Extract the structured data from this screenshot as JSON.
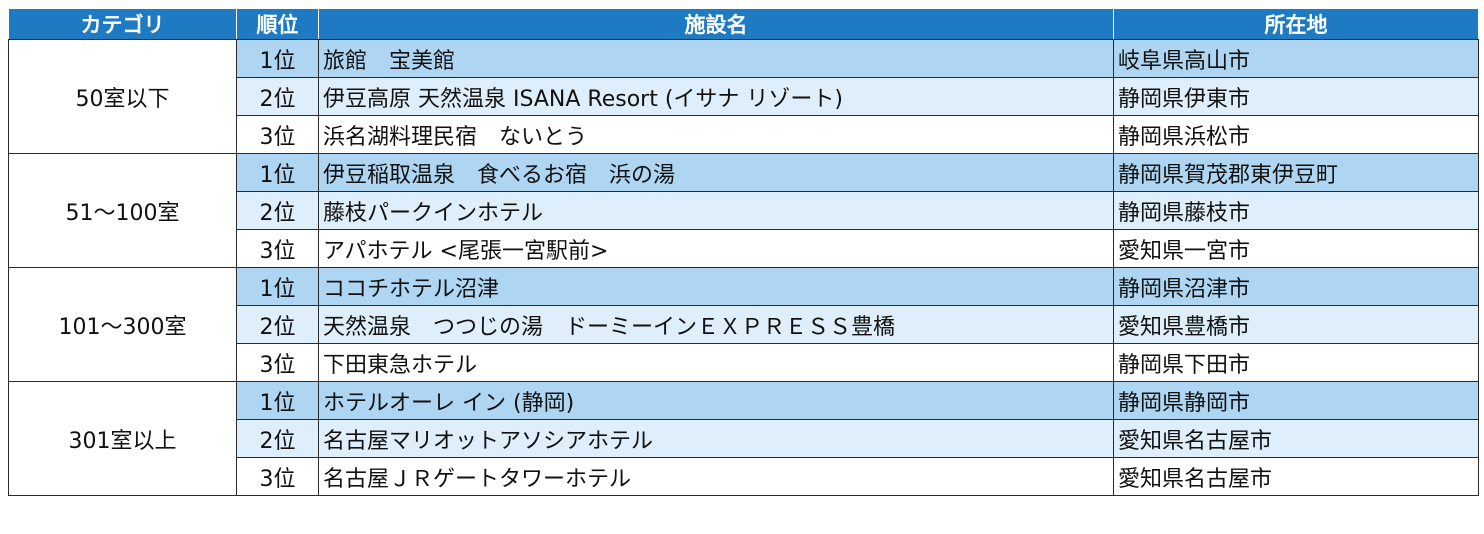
{
  "table": {
    "headers": {
      "category": "カテゴリ",
      "rank": "順位",
      "facility": "施設名",
      "location": "所在地"
    },
    "groups": [
      {
        "category": "50室以下",
        "rows": [
          {
            "rank": "1位",
            "facility": "旅館　宝美館",
            "location": "岐阜県高山市"
          },
          {
            "rank": "2位",
            "facility": "伊豆高原 天然温泉 ISANA Resort (イサナ リゾート)",
            "location": "静岡県伊東市"
          },
          {
            "rank": "3位",
            "facility": "浜名湖料理民宿　ないとう",
            "location": "静岡県浜松市"
          }
        ]
      },
      {
        "category": "51～100室",
        "rows": [
          {
            "rank": "1位",
            "facility": "伊豆稲取温泉　食べるお宿　浜の湯",
            "location": "静岡県賀茂郡東伊豆町"
          },
          {
            "rank": "2位",
            "facility": "藤枝パークインホテル",
            "location": "静岡県藤枝市"
          },
          {
            "rank": "3位",
            "facility": "アパホテル <尾張一宮駅前>",
            "location": "愛知県一宮市"
          }
        ]
      },
      {
        "category": "101～300室",
        "rows": [
          {
            "rank": "1位",
            "facility": "ココチホテル沼津",
            "location": "静岡県沼津市"
          },
          {
            "rank": "2位",
            "facility": "天然温泉　つつじの湯　ドーミーインＥＸＰＲＥＳＳ豊橋",
            "location": "愛知県豊橋市"
          },
          {
            "rank": "3位",
            "facility": "下田東急ホテル",
            "location": "静岡県下田市"
          }
        ]
      },
      {
        "category": "301室以上",
        "rows": [
          {
            "rank": "1位",
            "facility": "ホテルオーレ イン (静岡)",
            "location": "静岡県静岡市"
          },
          {
            "rank": "2位",
            "facility": "名古屋マリオットアソシアホテル",
            "location": "愛知県名古屋市"
          },
          {
            "rank": "3位",
            "facility": "名古屋ＪＲゲートタワーホテル",
            "location": "愛知県名古屋市"
          }
        ]
      }
    ]
  }
}
